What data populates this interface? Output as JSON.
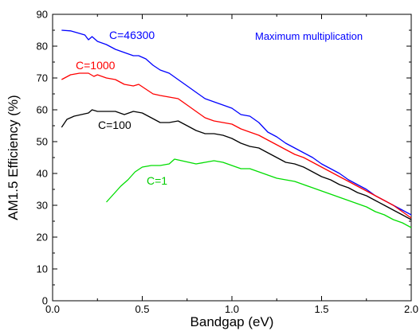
{
  "chart_data": {
    "type": "line",
    "title": "",
    "xlabel": "Bandgap (eV)",
    "ylabel": "AM1.5 Efficiency (%)",
    "xlim": [
      0.0,
      2.0
    ],
    "ylim": [
      0,
      90
    ],
    "xticks": [
      0.0,
      0.5,
      1.0,
      1.5,
      2.0
    ],
    "xtick_labels": [
      "0.0",
      "0.5",
      "1.0",
      "1.5",
      "2.0"
    ],
    "yticks": [
      0,
      10,
      20,
      30,
      40,
      50,
      60,
      70,
      80,
      90
    ],
    "ytick_labels": [
      "0",
      "10",
      "20",
      "30",
      "40",
      "50",
      "60",
      "70",
      "80",
      "90"
    ],
    "grid": false,
    "legend": "inline labels",
    "annotation": {
      "text": "Maximum multiplication",
      "color": "#0000ff"
    },
    "series": [
      {
        "name": "C=46300",
        "color": "#0000ff",
        "x": [
          0.05,
          0.1,
          0.15,
          0.18,
          0.2,
          0.22,
          0.25,
          0.3,
          0.35,
          0.4,
          0.45,
          0.48,
          0.52,
          0.56,
          0.6,
          0.65,
          0.7,
          0.75,
          0.8,
          0.85,
          0.9,
          0.95,
          1.0,
          1.05,
          1.1,
          1.15,
          1.2,
          1.25,
          1.3,
          1.35,
          1.4,
          1.45,
          1.5,
          1.55,
          1.6,
          1.65,
          1.7,
          1.75,
          1.8,
          1.85,
          1.9,
          1.95,
          2.0
        ],
        "y": [
          85,
          84.8,
          84,
          83.5,
          82,
          83,
          81.5,
          80.5,
          79,
          78,
          77,
          77,
          76,
          74,
          72.5,
          71.5,
          69.5,
          67.5,
          65.5,
          63.5,
          62.5,
          61.5,
          60.5,
          58.5,
          58,
          56,
          53,
          51.5,
          49.5,
          48,
          46.5,
          45,
          43,
          41.5,
          40,
          38,
          36.5,
          35,
          33,
          31.5,
          30,
          28.5,
          27
        ]
      },
      {
        "name": "C=1000",
        "color": "#ff0000",
        "x": [
          0.05,
          0.1,
          0.15,
          0.2,
          0.23,
          0.25,
          0.3,
          0.35,
          0.4,
          0.45,
          0.48,
          0.52,
          0.56,
          0.6,
          0.65,
          0.7,
          0.75,
          0.8,
          0.85,
          0.9,
          0.95,
          1.0,
          1.05,
          1.1,
          1.15,
          1.2,
          1.25,
          1.3,
          1.35,
          1.4,
          1.45,
          1.5,
          1.55,
          1.6,
          1.65,
          1.7,
          1.75,
          1.8,
          1.85,
          1.9,
          1.95,
          2.0
        ],
        "y": [
          69.5,
          71,
          71.5,
          71.5,
          70.5,
          71,
          70,
          69.5,
          68,
          67.5,
          68,
          66.5,
          65,
          64.5,
          64,
          63.5,
          61.5,
          59.5,
          57.5,
          56.5,
          56,
          55.5,
          54,
          53,
          52,
          50.5,
          49,
          47.5,
          46,
          45,
          43.5,
          42,
          40.5,
          39,
          37.5,
          36,
          34.5,
          33,
          31.5,
          30,
          28,
          26
        ]
      },
      {
        "name": "C=100",
        "color": "#000000",
        "x": [
          0.05,
          0.08,
          0.12,
          0.16,
          0.2,
          0.22,
          0.25,
          0.3,
          0.35,
          0.4,
          0.45,
          0.5,
          0.55,
          0.6,
          0.65,
          0.7,
          0.75,
          0.8,
          0.85,
          0.9,
          0.95,
          1.0,
          1.05,
          1.1,
          1.15,
          1.2,
          1.25,
          1.3,
          1.35,
          1.4,
          1.45,
          1.5,
          1.55,
          1.6,
          1.65,
          1.7,
          1.75,
          1.8,
          1.85,
          1.9,
          1.95,
          2.0
        ],
        "y": [
          54.5,
          57,
          58,
          58.5,
          59,
          60,
          59.5,
          59.5,
          59.5,
          58.5,
          59.5,
          59,
          57.5,
          56,
          56,
          56.5,
          55,
          53.5,
          52.5,
          52.5,
          52,
          51,
          49.5,
          48.5,
          48,
          46.5,
          45,
          43.5,
          43,
          42,
          40.5,
          39,
          38,
          36.5,
          35.5,
          34,
          33,
          31.5,
          30,
          28.5,
          27,
          25.5
        ]
      },
      {
        "name": "C=1",
        "color": "#00dd00",
        "x": [
          0.3,
          0.34,
          0.38,
          0.42,
          0.46,
          0.5,
          0.55,
          0.6,
          0.65,
          0.68,
          0.72,
          0.76,
          0.8,
          0.85,
          0.9,
          0.95,
          1.0,
          1.05,
          1.1,
          1.15,
          1.2,
          1.25,
          1.3,
          1.35,
          1.4,
          1.45,
          1.5,
          1.55,
          1.6,
          1.65,
          1.7,
          1.75,
          1.8,
          1.85,
          1.9,
          1.95,
          2.0
        ],
        "y": [
          31,
          33.5,
          36,
          38,
          40.5,
          42,
          42.5,
          42.5,
          43,
          44.5,
          44,
          43.5,
          43,
          43.5,
          44,
          43.5,
          42.5,
          41.5,
          41.5,
          40.5,
          39.5,
          38.5,
          38,
          37.5,
          36.5,
          35.5,
          34.5,
          33.5,
          32.5,
          31.5,
          30.5,
          29.5,
          28,
          27,
          25.5,
          24.5,
          23
        ]
      }
    ]
  }
}
